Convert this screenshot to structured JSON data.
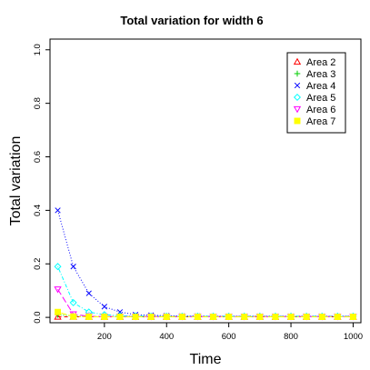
{
  "chart_data": {
    "type": "line",
    "title": "Total variation for width 6",
    "xlabel": "Time",
    "ylabel": "Total variation",
    "xlim": [
      25,
      1025
    ],
    "ylim": [
      -0.02,
      1.04
    ],
    "xticks": [
      200,
      400,
      600,
      800,
      1000
    ],
    "xtick_labels": [
      "200",
      "400",
      "600",
      "800",
      "1000"
    ],
    "yticks": [
      0.0,
      0.2,
      0.4,
      0.6,
      0.8,
      1.0
    ],
    "ytick_labels": [
      "0.0",
      "0.2",
      "0.4",
      "0.6",
      "0.8",
      "1.0"
    ],
    "grid": false,
    "legend_position": "top-right",
    "x": [
      50,
      100,
      150,
      200,
      250,
      300,
      350,
      400,
      450,
      500,
      550,
      600,
      650,
      700,
      750,
      800,
      850,
      900,
      950,
      1000
    ],
    "series": [
      {
        "name": "Area 2",
        "color": "#FF0000",
        "marker": "triangle-up",
        "line_style": "dashed",
        "values": [
          0.002,
          0.002,
          0.002,
          0.002,
          0.002,
          0.002,
          0.002,
          0.002,
          0.002,
          0.002,
          0.002,
          0.002,
          0.002,
          0.002,
          0.002,
          0.002,
          0.002,
          0.002,
          0.002,
          0.002
        ]
      },
      {
        "name": "Area 3",
        "color": "#00CD00",
        "marker": "plus",
        "line_style": "dotted",
        "values": [
          0.01,
          0.005,
          0.003,
          0.003,
          0.003,
          0.003,
          0.003,
          0.003,
          0.003,
          0.003,
          0.003,
          0.003,
          0.003,
          0.003,
          0.003,
          0.003,
          0.003,
          0.003,
          0.003,
          0.003
        ]
      },
      {
        "name": "Area 4",
        "color": "#0000FF",
        "marker": "cross",
        "line_style": "dotted",
        "values": [
          0.4,
          0.19,
          0.09,
          0.04,
          0.02,
          0.01,
          0.008,
          0.006,
          0.005,
          0.005,
          0.004,
          0.004,
          0.004,
          0.004,
          0.004,
          0.004,
          0.004,
          0.004,
          0.004,
          0.004
        ]
      },
      {
        "name": "Area 5",
        "color": "#00FFFF",
        "marker": "diamond",
        "line_style": "dashdot",
        "values": [
          0.19,
          0.055,
          0.02,
          0.01,
          0.006,
          0.005,
          0.004,
          0.004,
          0.004,
          0.004,
          0.004,
          0.004,
          0.004,
          0.004,
          0.004,
          0.004,
          0.004,
          0.004,
          0.004,
          0.004
        ]
      },
      {
        "name": "Area 6",
        "color": "#FF00FF",
        "marker": "triangle-down",
        "line_style": "longdash",
        "values": [
          0.105,
          0.012,
          0.004,
          0.003,
          0.003,
          0.003,
          0.003,
          0.003,
          0.003,
          0.003,
          0.003,
          0.003,
          0.003,
          0.003,
          0.003,
          0.003,
          0.003,
          0.003,
          0.003,
          0.003
        ]
      },
      {
        "name": "Area 7",
        "color": "#FFFF00",
        "marker": "square",
        "line_style": "twodash",
        "values": [
          0.02,
          0.003,
          0.002,
          0.002,
          0.002,
          0.002,
          0.002,
          0.002,
          0.002,
          0.002,
          0.002,
          0.002,
          0.002,
          0.002,
          0.002,
          0.002,
          0.002,
          0.002,
          0.002,
          0.002
        ]
      }
    ]
  }
}
